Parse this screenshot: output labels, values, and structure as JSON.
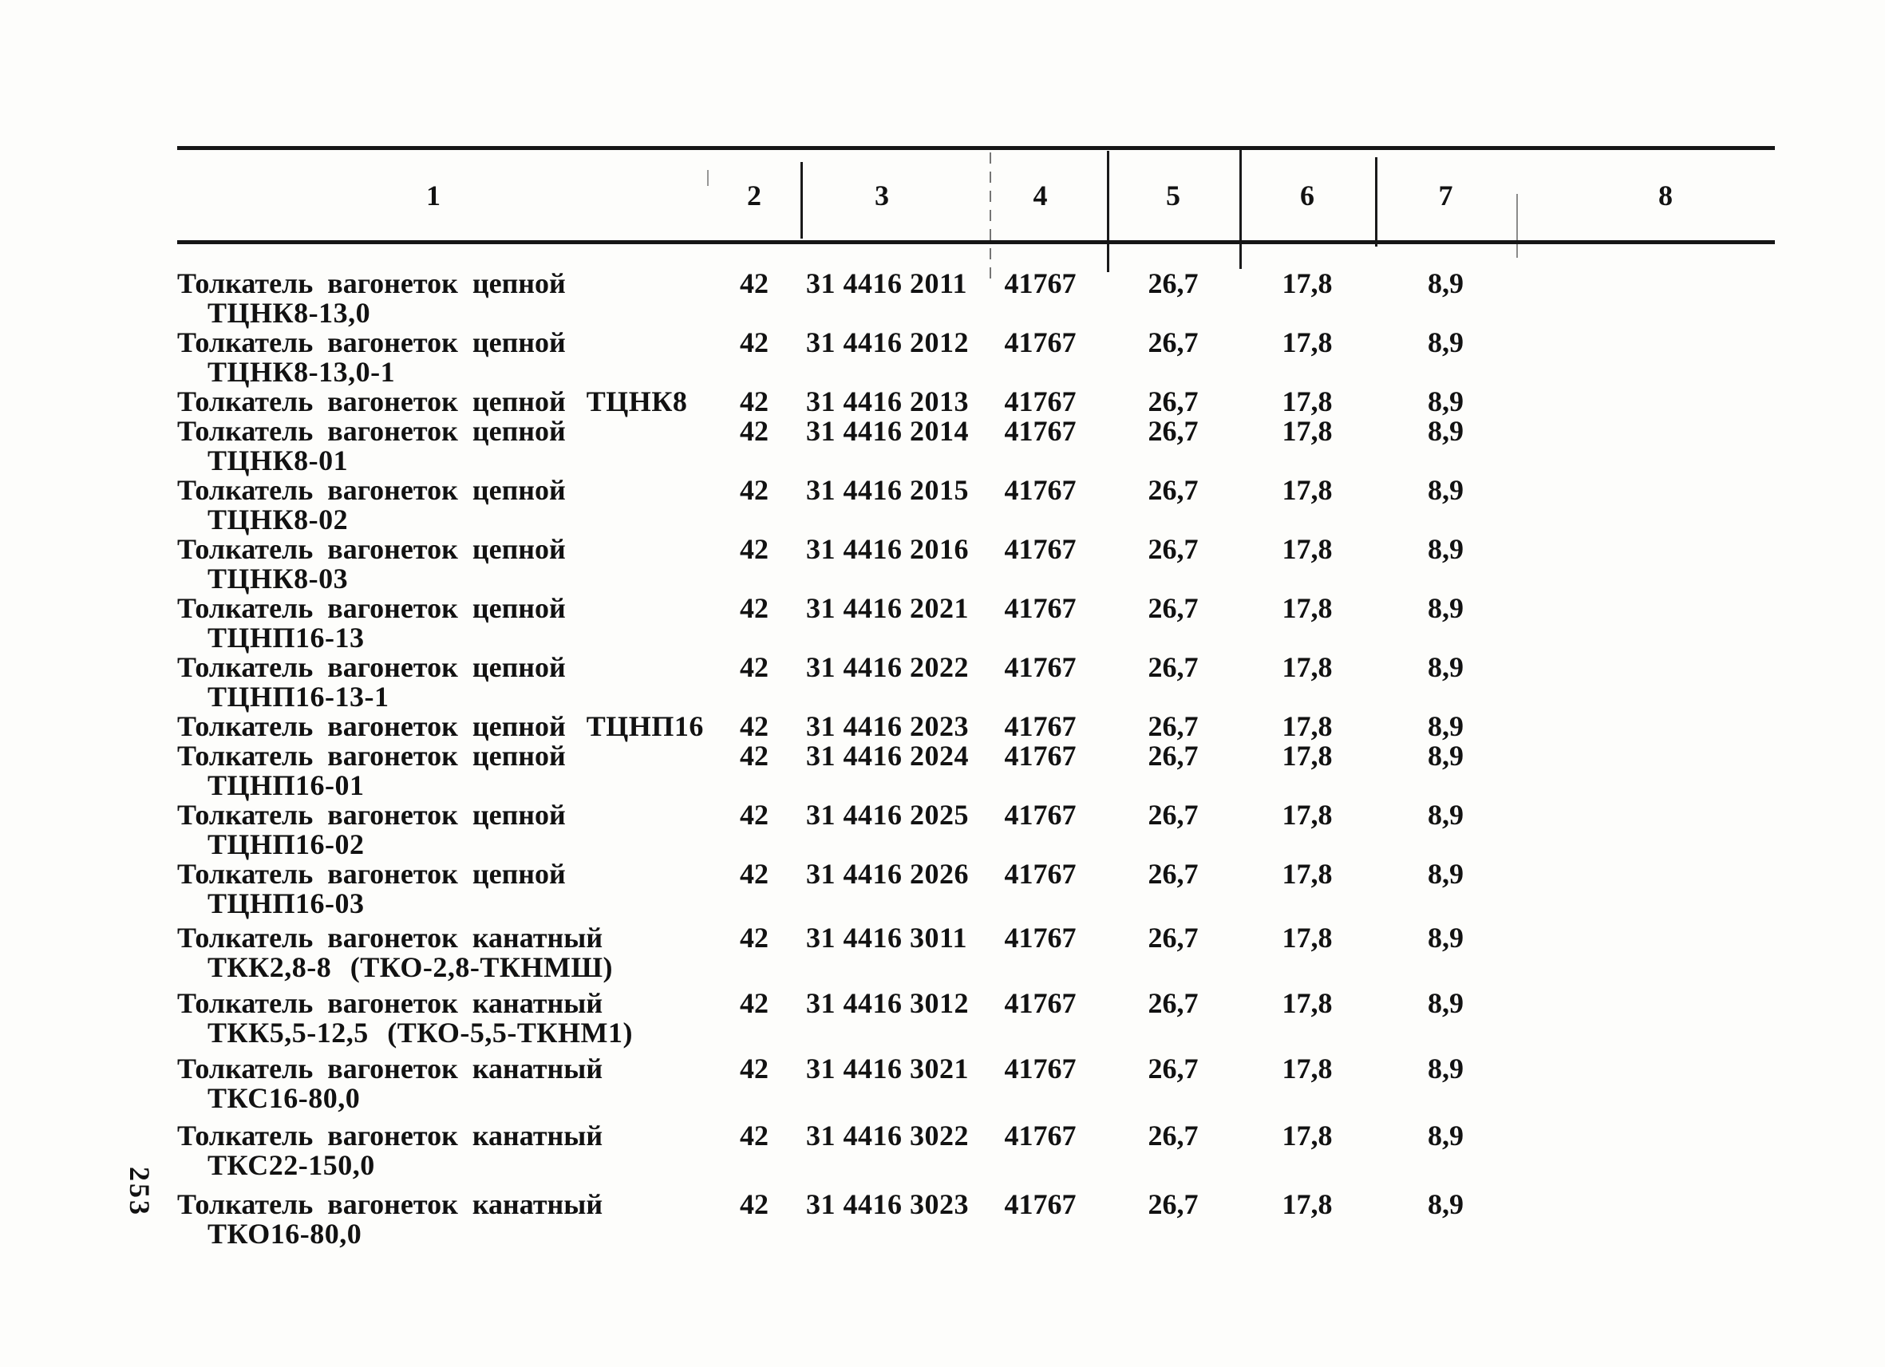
{
  "page": {
    "number": "253"
  },
  "table": {
    "column_headers": [
      "1",
      "2",
      "3",
      "4",
      "5",
      "6",
      "7",
      "8"
    ],
    "rows": [
      {
        "name": "Толкатель вагонеток цепной",
        "inline_designation": "",
        "designation": "ТЦНК8-13,0",
        "group_code": "42",
        "okp_code": "31 4416 2011",
        "col4": "41767",
        "col5": "26,7",
        "col6": "17,8",
        "col7": "8,9",
        "col8": ""
      },
      {
        "name": "Толкатель вагонеток цепной",
        "inline_designation": "",
        "designation": "ТЦНК8-13,0-1",
        "group_code": "42",
        "okp_code": "31 4416 2012",
        "col4": "41767",
        "col5": "26,7",
        "col6": "17,8",
        "col7": "8,9",
        "col8": ""
      },
      {
        "name": "Толкатель вагонеток цепной",
        "inline_designation": "ТЦНК8",
        "designation": "",
        "group_code": "42",
        "okp_code": "31 4416 2013",
        "col4": "41767",
        "col5": "26,7",
        "col6": "17,8",
        "col7": "8,9",
        "col8": ""
      },
      {
        "name": "Толкатель вагонеток цепной",
        "inline_designation": "",
        "designation": "ТЦНК8-01",
        "group_code": "42",
        "okp_code": "31 4416 2014",
        "col4": "41767",
        "col5": "26,7",
        "col6": "17,8",
        "col7": "8,9",
        "col8": ""
      },
      {
        "name": "Толкатель вагонеток цепной",
        "inline_designation": "",
        "designation": "ТЦНК8-02",
        "group_code": "42",
        "okp_code": "31 4416 2015",
        "col4": "41767",
        "col5": "26,7",
        "col6": "17,8",
        "col7": "8,9",
        "col8": ""
      },
      {
        "name": "Толкатель вагонеток цепной",
        "inline_designation": "",
        "designation": "ТЦНК8-03",
        "group_code": "42",
        "okp_code": "31 4416 2016",
        "col4": "41767",
        "col5": "26,7",
        "col6": "17,8",
        "col7": "8,9",
        "col8": ""
      },
      {
        "name": "Толкатель вагонеток цепной",
        "inline_designation": "",
        "designation": "ТЦНП16-13",
        "group_code": "42",
        "okp_code": "31 4416 2021",
        "col4": "41767",
        "col5": "26,7",
        "col6": "17,8",
        "col7": "8,9",
        "col8": ""
      },
      {
        "name": "Толкатель вагонеток цепной",
        "inline_designation": "",
        "designation": "ТЦНП16-13-1",
        "group_code": "42",
        "okp_code": "31 4416 2022",
        "col4": "41767",
        "col5": "26,7",
        "col6": "17,8",
        "col7": "8,9",
        "col8": ""
      },
      {
        "name": "Толкатель вагонеток цепной",
        "inline_designation": "ТЦНП16",
        "designation": "",
        "group_code": "42",
        "okp_code": "31 4416 2023",
        "col4": "41767",
        "col5": "26,7",
        "col6": "17,8",
        "col7": "8,9",
        "col8": ""
      },
      {
        "name": "Толкатель вагонеток цепной",
        "inline_designation": "",
        "designation": "ТЦНП16-01",
        "group_code": "42",
        "okp_code": "31 4416 2024",
        "col4": "41767",
        "col5": "26,7",
        "col6": "17,8",
        "col7": "8,9",
        "col8": ""
      },
      {
        "name": "Толкатель вагонеток цепной",
        "inline_designation": "",
        "designation": "ТЦНП16-02",
        "group_code": "42",
        "okp_code": "31 4416 2025",
        "col4": "41767",
        "col5": "26,7",
        "col6": "17,8",
        "col7": "8,9",
        "col8": ""
      },
      {
        "name": "Толкатель вагонеток цепной",
        "inline_designation": "",
        "designation": "ТЦНП16-03",
        "group_code": "42",
        "okp_code": "31 4416 2026",
        "col4": "41767",
        "col5": "26,7",
        "col6": "17,8",
        "col7": "8,9",
        "col8": ""
      },
      {
        "name": "Толкатель вагонеток канатный",
        "inline_designation": "",
        "designation": "ТКК2,8-8 (ТКО-2,8-ТКНМШ)",
        "group_code": "42",
        "okp_code": "31 4416 3011",
        "col4": "41767",
        "col5": "26,7",
        "col6": "17,8",
        "col7": "8,9",
        "col8": ""
      },
      {
        "name": "Толкатель вагонеток канатный",
        "inline_designation": "",
        "designation": "ТКК5,5-12,5 (ТКО-5,5-ТКНМ1)",
        "group_code": "42",
        "okp_code": "31 4416 3012",
        "col4": "41767",
        "col5": "26,7",
        "col6": "17,8",
        "col7": "8,9",
        "col8": ""
      },
      {
        "name": "Толкатель вагонеток канатный",
        "inline_designation": "",
        "designation": "ТКС16-80,0",
        "group_code": "42",
        "okp_code": "31 4416 3021",
        "col4": "41767",
        "col5": "26,7",
        "col6": "17,8",
        "col7": "8,9",
        "col8": ""
      },
      {
        "name": "Толкатель вагонеток канатный",
        "inline_designation": "",
        "designation": "ТКС22-150,0",
        "group_code": "42",
        "okp_code": "31 4416 3022",
        "col4": "41767",
        "col5": "26,7",
        "col6": "17,8",
        "col7": "8,9",
        "col8": ""
      },
      {
        "name": "Толкатель вагонеток канатный",
        "inline_designation": "",
        "designation": "ТКО16-80,0",
        "group_code": "42",
        "okp_code": "31 4416 3023",
        "col4": "41767",
        "col5": "26,7",
        "col6": "17,8",
        "col7": "8,9",
        "col8": ""
      }
    ]
  }
}
